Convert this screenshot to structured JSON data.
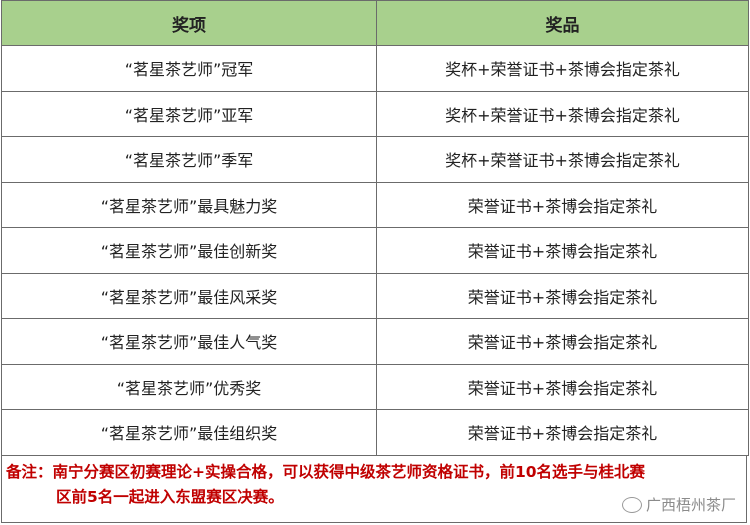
{
  "table": {
    "headers": [
      "奖项",
      "奖品"
    ],
    "rows": [
      [
        "“茗星茶艺师”冠军",
        "奖杯+荣誉证书+茶博会指定茶礼"
      ],
      [
        "“茗星茶艺师”亚军",
        "奖杯+荣誉证书+茶博会指定茶礼"
      ],
      [
        "“茗星茶艺师”季军",
        "奖杯+荣誉证书+茶博会指定茶礼"
      ],
      [
        "“茗星茶艺师”最具魅力奖",
        "荣誉证书+茶博会指定茶礼"
      ],
      [
        "“茗星茶艺师”最佳创新奖",
        "荣誉证书+茶博会指定茶礼"
      ],
      [
        "“茗星茶艺师”最佳风采奖",
        "荣誉证书+茶博会指定茶礼"
      ],
      [
        "“茗星茶艺师”最佳人气奖",
        "荣誉证书+茶博会指定茶礼"
      ],
      [
        "“茗星茶艺师”优秀奖",
        "荣誉证书+茶博会指定茶礼"
      ],
      [
        "“茗星茶艺师”最佳组织奖",
        "荣誉证书+茶博会指定茶礼"
      ]
    ]
  },
  "note": {
    "line1": "备注：南宁分赛区初赛理论+实操合格，可以获得中级茶艺师资格证书，前10名选手与桂北赛",
    "line2": "区前5名一起进入东盟赛区决赛。"
  },
  "watermark": {
    "text": "广西梧州茶厂",
    "icon": "wechat-icon"
  },
  "colors": {
    "header_bg": "#a8d08d",
    "note_text": "#c00000"
  }
}
